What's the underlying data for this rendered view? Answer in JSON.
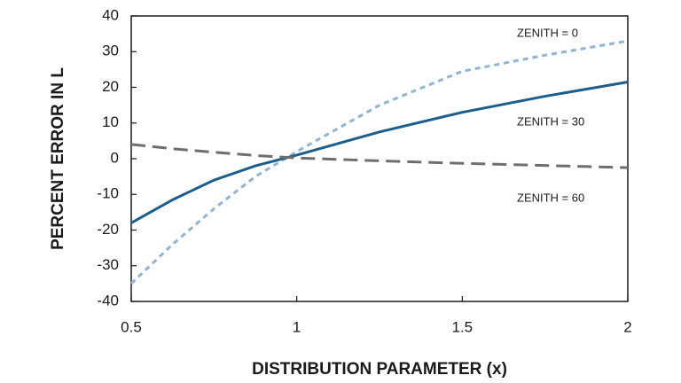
{
  "chart_data": {
    "type": "line",
    "xlabel": "DISTRIBUTION PARAMETER (x)",
    "ylabel": "PERCENT ERROR IN L",
    "x": [
      0.5,
      0.625,
      0.75,
      0.875,
      1,
      1.25,
      1.5,
      1.75,
      2
    ],
    "series": [
      {
        "name": "ZENITH = 0",
        "color": "#8fb4d4",
        "dash": "dashed",
        "values": [
          -35,
          -24,
          -14,
          -5,
          2,
          15,
          24.5,
          29,
          33
        ]
      },
      {
        "name": "ZENITH = 30",
        "color": "#1b5e8c",
        "dash": "solid",
        "values": [
          -18,
          -11.5,
          -6,
          -2,
          1,
          7.5,
          13,
          17.5,
          21.5
        ]
      },
      {
        "name": "ZENITH = 60",
        "color": "#6e6e6e",
        "dash": "longdash",
        "values": [
          4,
          2.8,
          1.8,
          0.9,
          0.2,
          -0.6,
          -1.3,
          -1.9,
          -2.5
        ]
      }
    ],
    "xlim": [
      0.5,
      2
    ],
    "ylim": [
      -40,
      40
    ],
    "xticks": [
      0.5,
      1,
      1.5,
      2
    ],
    "yticks": [
      -40,
      -30,
      -20,
      -10,
      0,
      10,
      20,
      30,
      40
    ],
    "grid": false
  }
}
